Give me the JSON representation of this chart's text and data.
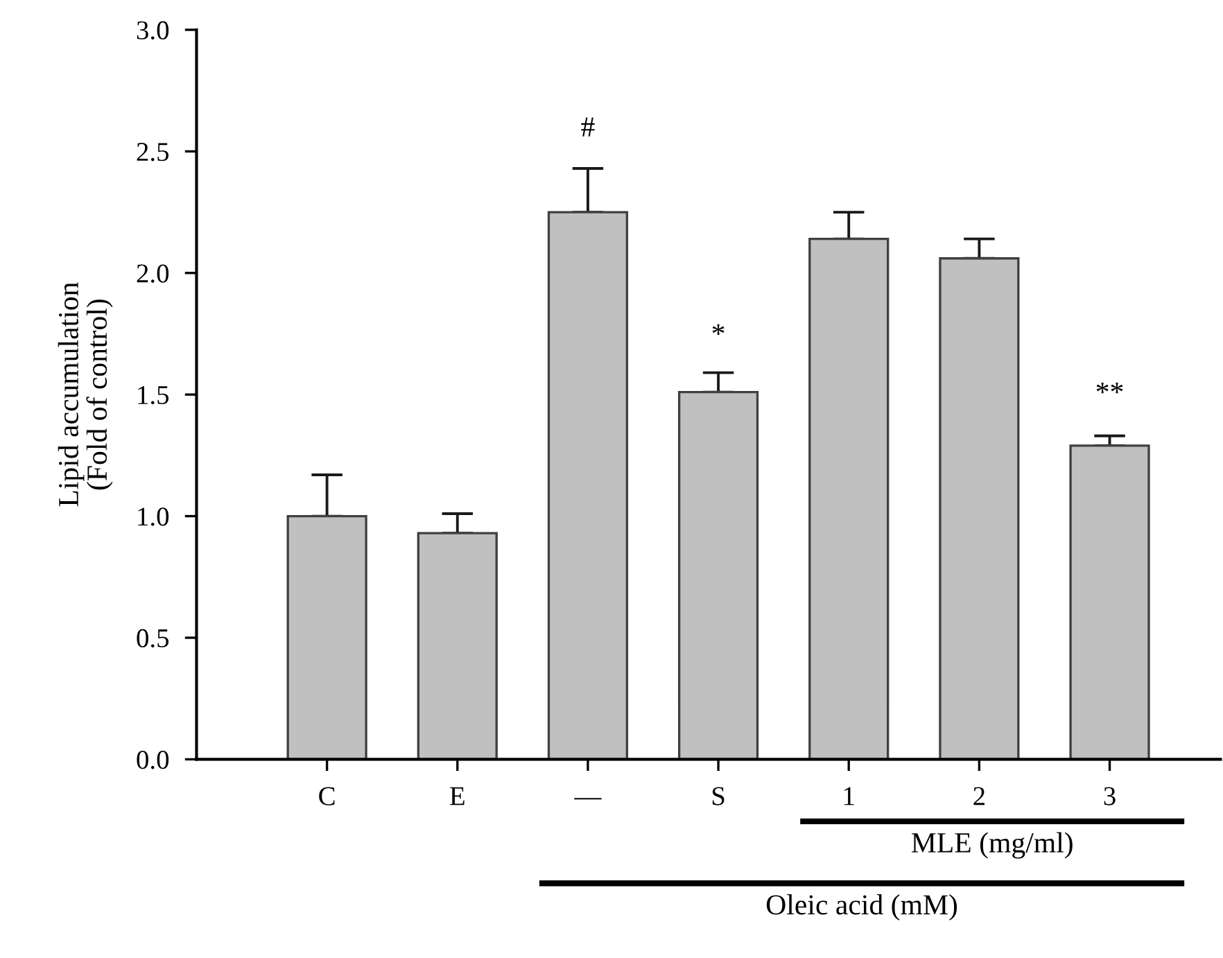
{
  "chart_data": {
    "type": "bar",
    "ylabel": "Lipid accumulation\n(Fold of control)",
    "categories": [
      "C",
      "E",
      "—",
      "S",
      "1",
      "2",
      "3"
    ],
    "values": [
      1.0,
      0.93,
      2.25,
      1.51,
      2.14,
      2.06,
      1.29
    ],
    "errors": [
      [
        1.0,
        1.17
      ],
      [
        0.93,
        1.01
      ],
      [
        2.25,
        2.43
      ],
      [
        1.51,
        1.59
      ],
      [
        2.14,
        2.25
      ],
      [
        2.06,
        2.14
      ],
      [
        1.29,
        1.33
      ]
    ],
    "color": "#c0c0c0",
    "ylim": [
      0,
      3.0
    ],
    "yticks": [
      {
        "value": 0,
        "label": "0.0"
      },
      {
        "value": 0.5,
        "label": "0.5"
      },
      {
        "value": 1,
        "label": "1.0"
      },
      {
        "value": 1.5,
        "label": "1.5"
      },
      {
        "value": 2,
        "label": "2.0"
      },
      {
        "value": 2.5,
        "label": "2.5"
      },
      {
        "value": 3,
        "label": "3.0"
      }
    ],
    "grid": false,
    "legend": false,
    "annotations": [
      "#",
      "*",
      "**",
      "MLE (mg/ml)",
      "Oleic acid (mM)"
    ]
  }
}
